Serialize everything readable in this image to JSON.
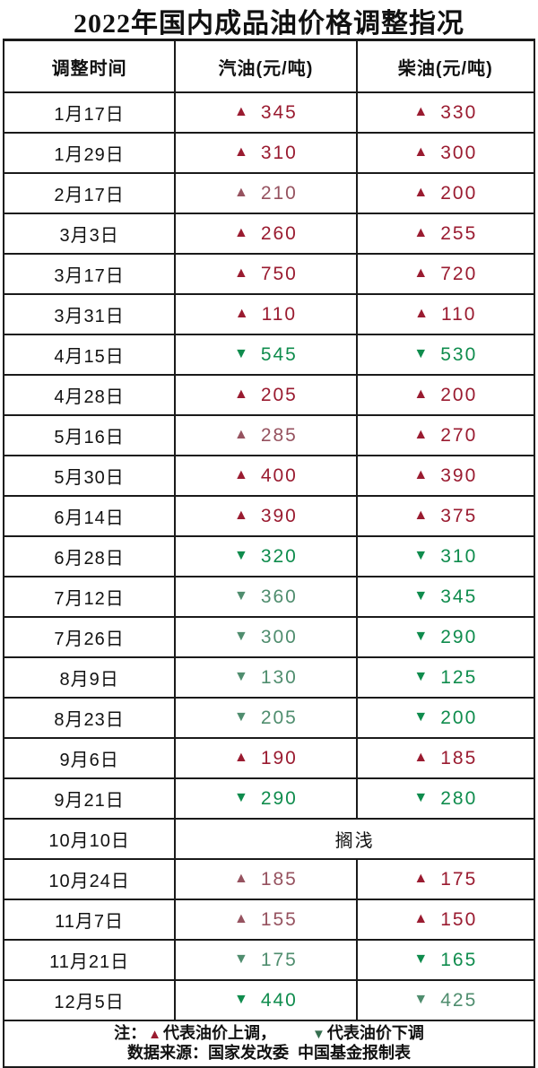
{
  "title": "2022年国内成品油价格调整指况",
  "table": {
    "headers": [
      "调整时间",
      "汽油(元/吨)",
      "柴油(元/吨)"
    ],
    "rows": [
      {
        "date": "1月17日",
        "gasoline": {
          "direction": "up",
          "value": "345",
          "muted": false
        },
        "diesel": {
          "direction": "up",
          "value": "330",
          "muted": false
        }
      },
      {
        "date": "1月29日",
        "gasoline": {
          "direction": "up",
          "value": "310",
          "muted": false
        },
        "diesel": {
          "direction": "up",
          "value": "300",
          "muted": false
        }
      },
      {
        "date": "2月17日",
        "gasoline": {
          "direction": "up",
          "value": "210",
          "muted": true
        },
        "diesel": {
          "direction": "up",
          "value": "200",
          "muted": false
        }
      },
      {
        "date": "3月3日",
        "gasoline": {
          "direction": "up",
          "value": "260",
          "muted": false
        },
        "diesel": {
          "direction": "up",
          "value": "255",
          "muted": false
        }
      },
      {
        "date": "3月17日",
        "gasoline": {
          "direction": "up",
          "value": "750",
          "muted": false
        },
        "diesel": {
          "direction": "up",
          "value": "720",
          "muted": false
        }
      },
      {
        "date": "3月31日",
        "gasoline": {
          "direction": "up",
          "value": "110",
          "muted": false
        },
        "diesel": {
          "direction": "up",
          "value": "110",
          "muted": false
        }
      },
      {
        "date": "4月15日",
        "gasoline": {
          "direction": "down",
          "value": "545",
          "muted": false
        },
        "diesel": {
          "direction": "down",
          "value": "530",
          "muted": false
        }
      },
      {
        "date": "4月28日",
        "gasoline": {
          "direction": "up",
          "value": "205",
          "muted": false
        },
        "diesel": {
          "direction": "up",
          "value": "200",
          "muted": false
        }
      },
      {
        "date": "5月16日",
        "gasoline": {
          "direction": "up",
          "value": "285",
          "muted": true
        },
        "diesel": {
          "direction": "up",
          "value": "270",
          "muted": false
        }
      },
      {
        "date": "5月30日",
        "gasoline": {
          "direction": "up",
          "value": "400",
          "muted": false
        },
        "diesel": {
          "direction": "up",
          "value": "390",
          "muted": false
        }
      },
      {
        "date": "6月14日",
        "gasoline": {
          "direction": "up",
          "value": "390",
          "muted": false
        },
        "diesel": {
          "direction": "up",
          "value": "375",
          "muted": false
        }
      },
      {
        "date": "6月28日",
        "gasoline": {
          "direction": "down",
          "value": "320",
          "muted": false
        },
        "diesel": {
          "direction": "down",
          "value": "310",
          "muted": false
        }
      },
      {
        "date": "7月12日",
        "gasoline": {
          "direction": "down",
          "value": "360",
          "muted": true
        },
        "diesel": {
          "direction": "down",
          "value": "345",
          "muted": false
        }
      },
      {
        "date": "7月26日",
        "gasoline": {
          "direction": "down",
          "value": "300",
          "muted": true
        },
        "diesel": {
          "direction": "down",
          "value": "290",
          "muted": false
        }
      },
      {
        "date": "8月9日",
        "gasoline": {
          "direction": "down",
          "value": "130",
          "muted": true
        },
        "diesel": {
          "direction": "down",
          "value": "125",
          "muted": false
        }
      },
      {
        "date": "8月23日",
        "gasoline": {
          "direction": "down",
          "value": "205",
          "muted": true
        },
        "diesel": {
          "direction": "down",
          "value": "200",
          "muted": false
        }
      },
      {
        "date": "9月6日",
        "gasoline": {
          "direction": "up",
          "value": "190",
          "muted": false
        },
        "diesel": {
          "direction": "up",
          "value": "185",
          "muted": false
        }
      },
      {
        "date": "9月21日",
        "gasoline": {
          "direction": "down",
          "value": "290",
          "muted": false
        },
        "diesel": {
          "direction": "down",
          "value": "280",
          "muted": false
        }
      },
      {
        "date": "10月10日",
        "merged_note": "搁浅"
      },
      {
        "date": "10月24日",
        "gasoline": {
          "direction": "up",
          "value": "185",
          "muted": true
        },
        "diesel": {
          "direction": "up",
          "value": "175",
          "muted": false
        }
      },
      {
        "date": "11月7日",
        "gasoline": {
          "direction": "up",
          "value": "155",
          "muted": true
        },
        "diesel": {
          "direction": "up",
          "value": "150",
          "muted": false
        }
      },
      {
        "date": "11月21日",
        "gasoline": {
          "direction": "down",
          "value": "175",
          "muted": true
        },
        "diesel": {
          "direction": "down",
          "value": "165",
          "muted": false
        }
      },
      {
        "date": "12月5日",
        "gasoline": {
          "direction": "down",
          "value": "440",
          "muted": false
        },
        "diesel": {
          "direction": "down",
          "value": "425",
          "muted": true
        }
      }
    ]
  },
  "footer": {
    "note_prefix": "注：",
    "up_legend": "代表油价上调，",
    "down_legend": "代表油价下调",
    "source": "数据来源：国家发改委  中国基金报制表"
  },
  "icons": {
    "up_glyph": "▲",
    "down_glyph": "▼"
  },
  "colors": {
    "up_strong": "#9A1B30",
    "up_muted": "#96525F",
    "down_strong": "#0F8C4D",
    "down_muted": "#4F8D6E",
    "legend_up": "#9A1B30",
    "legend_down": "#356E4F",
    "border": "#1A1A1A"
  },
  "chart_data": {
    "type": "table",
    "title": "2022年国内成品油价格调整指况",
    "columns": [
      "调整时间",
      "汽油(元/吨)",
      "柴油(元/吨)"
    ],
    "value_convention": "positive = 上调 (price increase, ▲), negative = 下调 (price decrease, ▼), 搁浅 = no adjustment",
    "rows": [
      [
        "1月17日",
        345,
        330
      ],
      [
        "1月29日",
        310,
        300
      ],
      [
        "2月17日",
        210,
        200
      ],
      [
        "3月3日",
        260,
        255
      ],
      [
        "3月17日",
        750,
        720
      ],
      [
        "3月31日",
        110,
        110
      ],
      [
        "4月15日",
        -545,
        -530
      ],
      [
        "4月28日",
        205,
        200
      ],
      [
        "5月16日",
        285,
        270
      ],
      [
        "5月30日",
        400,
        390
      ],
      [
        "6月14日",
        390,
        375
      ],
      [
        "6月28日",
        -320,
        -310
      ],
      [
        "7月12日",
        -360,
        -345
      ],
      [
        "7月26日",
        -300,
        -290
      ],
      [
        "8月9日",
        -130,
        -125
      ],
      [
        "8月23日",
        -205,
        -200
      ],
      [
        "9月6日",
        190,
        185
      ],
      [
        "9月21日",
        -290,
        -280
      ],
      [
        "10月10日",
        "搁浅",
        "搁浅"
      ],
      [
        "10月24日",
        185,
        175
      ],
      [
        "11月7日",
        155,
        150
      ],
      [
        "11月21日",
        -175,
        -165
      ],
      [
        "12月5日",
        -440,
        -425
      ]
    ],
    "legend": [
      "▲代表油价上调",
      "▼代表油价下调"
    ],
    "source": "数据来源：国家发改委  中国基金报制表"
  }
}
